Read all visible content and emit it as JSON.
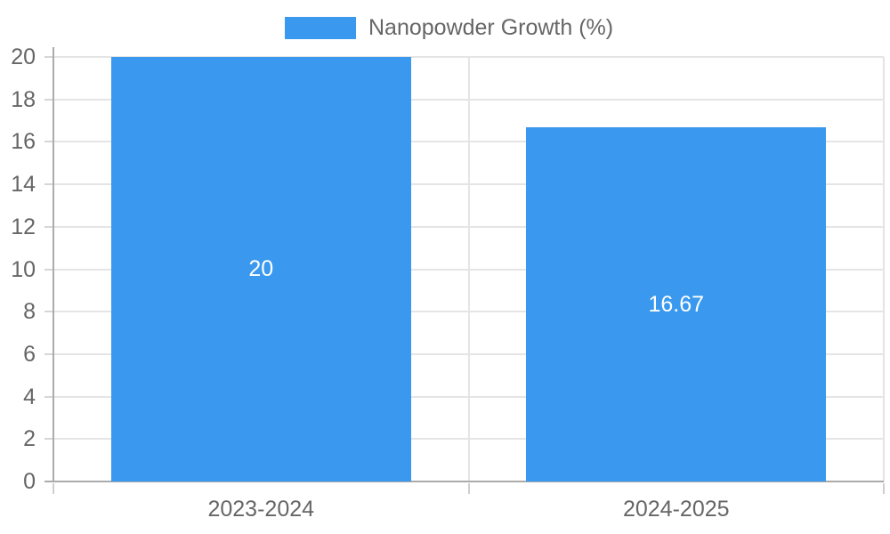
{
  "chart_data": {
    "type": "bar",
    "title": "",
    "categories": [
      "2023-2024",
      "2024-2025"
    ],
    "series": [
      {
        "name": "Nanopowder Growth (%)",
        "values": [
          20,
          16.67
        ],
        "color": "#3A99EE"
      }
    ],
    "data_labels": [
      "20",
      "16.67"
    ],
    "xlabel": "",
    "ylabel": "",
    "ylim": [
      0,
      20
    ],
    "yticks": [
      0,
      2,
      4,
      6,
      8,
      10,
      12,
      14,
      16,
      18,
      20
    ],
    "grid": true,
    "legend_position": "top"
  },
  "legend": {
    "label": "Nanopowder Growth (%)"
  },
  "colors": {
    "bar": "#3A99EE",
    "text": "#666666",
    "gridline": "#E5E5E5",
    "axis_line": "#ABABAB",
    "minor_tick": "#CFCFCF",
    "ytick_dash": "#D6D6D6",
    "value_label": "#FFFFFF",
    "background": "#FFFFFF"
  }
}
